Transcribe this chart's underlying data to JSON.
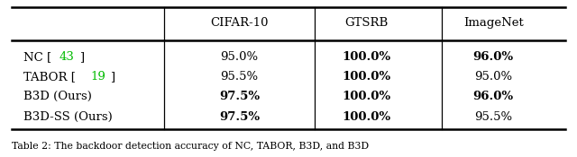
{
  "columns": [
    "",
    "CIFAR-10",
    "GTSRB",
    "ImageNet"
  ],
  "rows": [
    {
      "label": "NC",
      "ref": "43",
      "ref_color": "#00bb00",
      "cifar10": "95.0%",
      "gtsrb": "100.0%",
      "imagenet": "96.0%",
      "cifar10_bold": false,
      "gtsrb_bold": true,
      "imagenet_bold": true
    },
    {
      "label": "TABOR",
      "ref": "19",
      "ref_color": "#00bb00",
      "cifar10": "95.5%",
      "gtsrb": "100.0%",
      "imagenet": "95.0%",
      "cifar10_bold": false,
      "gtsrb_bold": true,
      "imagenet_bold": false
    },
    {
      "label": "B3D (Ours)",
      "ref": "",
      "ref_color": null,
      "cifar10": "97.5%",
      "gtsrb": "100.0%",
      "imagenet": "96.0%",
      "cifar10_bold": true,
      "gtsrb_bold": true,
      "imagenet_bold": true
    },
    {
      "label": "B3D-SS (Ours)",
      "ref": "",
      "ref_color": null,
      "cifar10": "97.5%",
      "gtsrb": "100.0%",
      "imagenet": "95.5%",
      "cifar10_bold": true,
      "gtsrb_bold": true,
      "imagenet_bold": false
    }
  ],
  "background_color": "#ffffff",
  "caption": "Table 2: The backdoor detection accuracy of NC, TABOR, B3D, and B3D"
}
